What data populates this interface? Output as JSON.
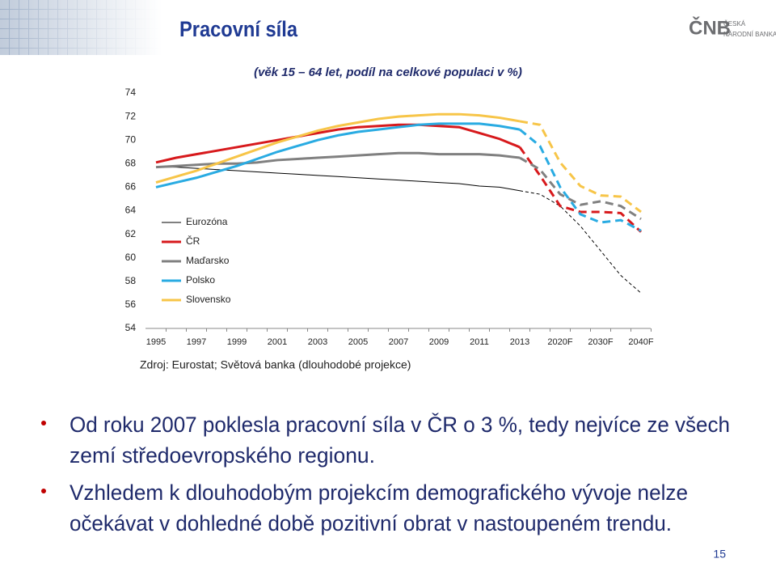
{
  "header": {
    "title": "Pracovní síla",
    "logo_mark": "ČNB",
    "logo_text": [
      "ČESKÁ",
      "NÁRODNÍ BANKA"
    ]
  },
  "chart_data": {
    "type": "line",
    "title": "(věk 15 – 64 let, podíl na celkové populaci v %)",
    "source": "Zdroj: Eurostat; Světová banka (dlouhodobé projekce)",
    "categories": [
      "1995",
      null,
      "1997",
      null,
      "1999",
      null,
      "2001",
      null,
      "2003",
      null,
      "2005",
      null,
      "2007",
      null,
      "2009",
      null,
      "2011",
      null,
      "2013",
      null,
      "2020F",
      null,
      "2030F",
      null,
      "2040F"
    ],
    "dashed_from_index": 18,
    "series": [
      {
        "name": "Eurozóna",
        "color": "#000000",
        "width": 1,
        "values": [
          67.7,
          67.7,
          67.6,
          67.5,
          67.4,
          67.3,
          67.2,
          67.1,
          67.0,
          66.9,
          66.8,
          66.7,
          66.6,
          66.5,
          66.4,
          66.3,
          66.1,
          66.0,
          65.7,
          65.4,
          64.4,
          62.7,
          60.6,
          58.5,
          57.0
        ]
      },
      {
        "name": "ČR",
        "color": "#d7191c",
        "width": 3,
        "values": [
          68.1,
          68.5,
          68.8,
          69.1,
          69.4,
          69.7,
          70.0,
          70.3,
          70.6,
          70.9,
          71.1,
          71.2,
          71.3,
          71.3,
          71.2,
          71.1,
          70.6,
          70.1,
          69.4,
          67.0,
          64.4,
          63.9,
          63.9,
          63.8,
          62.2
        ]
      },
      {
        "name": "Maďarsko",
        "color": "#808080",
        "width": 3,
        "values": [
          67.7,
          67.8,
          67.9,
          68.0,
          68.0,
          68.1,
          68.3,
          68.4,
          68.5,
          68.6,
          68.7,
          68.8,
          68.9,
          68.9,
          68.8,
          68.8,
          68.8,
          68.7,
          68.5,
          67.5,
          65.4,
          64.5,
          64.8,
          64.4,
          63.3
        ]
      },
      {
        "name": "Polsko",
        "color": "#29abe2",
        "width": 3,
        "values": [
          66.0,
          66.4,
          66.8,
          67.3,
          67.8,
          68.4,
          69.0,
          69.5,
          70.0,
          70.4,
          70.7,
          70.9,
          71.1,
          71.3,
          71.4,
          71.4,
          71.4,
          71.2,
          70.9,
          69.5,
          66.0,
          63.7,
          63.0,
          63.2,
          62.3
        ]
      },
      {
        "name": "Slovensko",
        "color": "#f7c548",
        "width": 3,
        "values": [
          66.4,
          66.9,
          67.4,
          68.0,
          68.6,
          69.2,
          69.8,
          70.3,
          70.8,
          71.2,
          71.5,
          71.8,
          72.0,
          72.1,
          72.2,
          72.2,
          72.1,
          71.9,
          71.6,
          71.3,
          68.1,
          66.1,
          65.3,
          65.2,
          63.9
        ]
      }
    ],
    "ylim": [
      54,
      74
    ],
    "yticks": [
      54,
      56,
      58,
      60,
      62,
      64,
      66,
      68,
      70,
      72,
      74
    ],
    "grid": false,
    "legend": "left"
  },
  "bullets": [
    [
      "Od roku 2007 poklesla pracovní síla v ČR o 3 %, tedy nejvíce ze všech",
      "zemí středoevropského regionu."
    ],
    [
      "Vzhledem k dlouhodobým projekcím demografického vývoje nelze",
      "očekávat v dohledné době pozitivní obrat v nastoupeném trendu."
    ]
  ],
  "page_number": "15"
}
